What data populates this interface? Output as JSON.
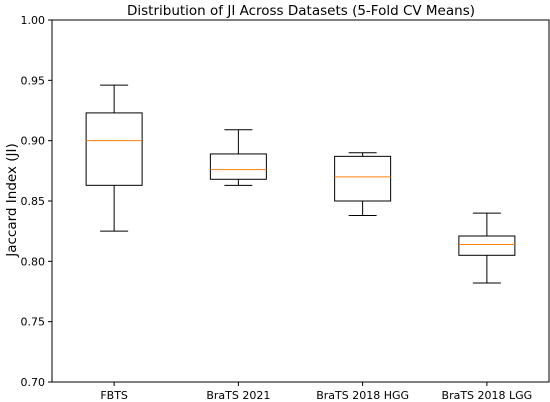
{
  "chart_data": {
    "type": "box",
    "title": "Distribution of JI Across Datasets (5-Fold CV Means)",
    "xlabel": "",
    "ylabel": "Jaccard Index (JI)",
    "ylim": [
      0.7,
      1.0
    ],
    "yticks": [
      "0.70",
      "0.75",
      "0.80",
      "0.85",
      "0.90",
      "0.95",
      "1.00"
    ],
    "categories": [
      "FBTS",
      "BraTS 2021",
      "BraTS 2018 HGG",
      "BraTS 2018 LGG"
    ],
    "boxes": [
      {
        "name": "FBTS",
        "whisker_low": 0.825,
        "q1": 0.863,
        "median": 0.9,
        "q3": 0.923,
        "whisker_high": 0.946
      },
      {
        "name": "BraTS 2021",
        "whisker_low": 0.863,
        "q1": 0.868,
        "median": 0.876,
        "q3": 0.889,
        "whisker_high": 0.909
      },
      {
        "name": "BraTS 2018 HGG",
        "whisker_low": 0.838,
        "q1": 0.85,
        "median": 0.87,
        "q3": 0.887,
        "whisker_high": 0.89
      },
      {
        "name": "BraTS 2018 LGG",
        "whisker_low": 0.782,
        "q1": 0.805,
        "median": 0.814,
        "q3": 0.821,
        "whisker_high": 0.84
      }
    ],
    "colors": {
      "box": "#000000",
      "median": "#ff7f0e"
    },
    "grid": false
  }
}
